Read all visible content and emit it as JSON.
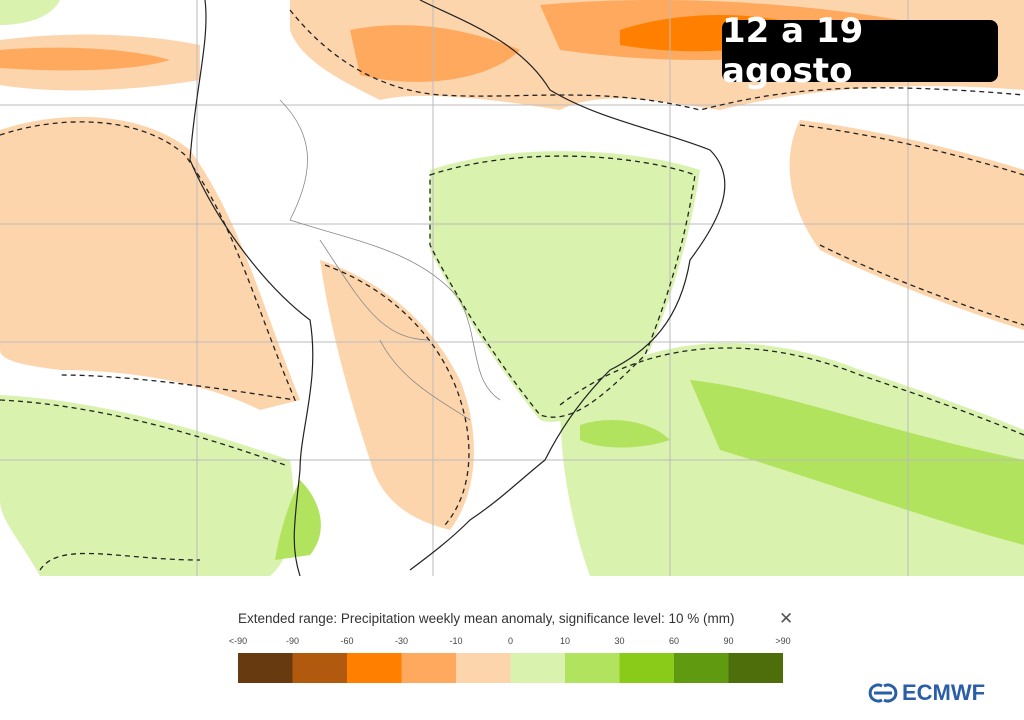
{
  "header": {
    "period": "12 a 19 agosto"
  },
  "legend": {
    "title": "Extended range: Precipitation weekly mean anomaly, significance level: 10 % (mm)",
    "labels": [
      "<-90",
      "-90",
      "-60",
      "-30",
      "-10",
      "0",
      "10",
      "30",
      "60",
      "90",
      ">90"
    ],
    "colors": [
      "#673a10",
      "#b15a0e",
      "#ff8000",
      "#ffa95e",
      "#fdd5ad",
      "#d9f2ae",
      "#b2e35e",
      "#8acb1a",
      "#5f9a10",
      "#4e6e0c"
    ]
  },
  "footer": {
    "logo": "ECMWF"
  }
}
